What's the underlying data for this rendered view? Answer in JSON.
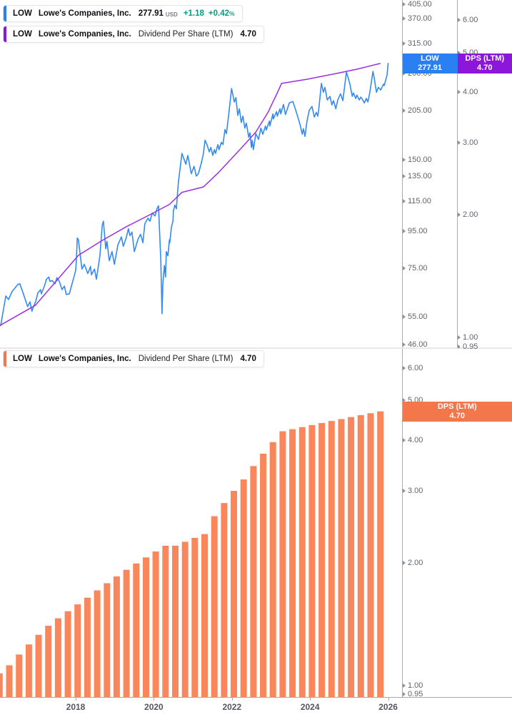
{
  "ui": {
    "legend_price": {
      "symbol": "LOW",
      "name": "Lowe's Companies, Inc.",
      "value": "277.91",
      "currency": "USD",
      "change": "+1.18",
      "change_pct": "+0.42",
      "pct_sign": "%"
    },
    "legend_dps_overlay": {
      "symbol": "LOW",
      "name": "Lowe's Companies, Inc.",
      "metric": "Dividend Per Share (LTM)",
      "value": "4.70"
    },
    "legend_dps_pane": {
      "symbol": "LOW",
      "name": "Lowe's Companies, Inc.",
      "metric": "Dividend Per Share (LTM)",
      "value": "4.70"
    },
    "price_badge": {
      "line1": "LOW",
      "line2": "277.91"
    },
    "dps_badge_top": {
      "line1": "DPS (LTM)",
      "line2": "4.70"
    },
    "dps_badge_bottom": {
      "line1": "DPS (LTM)",
      "line2": "4.70"
    },
    "colors": {
      "price_line": "#338af3",
      "price_badge": "#2a80f2",
      "dps_line": "#9a2fe3",
      "dps_badge": "#8c16db",
      "bars": "#f9875b",
      "bar_badge": "#f4764b",
      "change_positive": "#089981"
    }
  },
  "axes": {
    "price_ticks": [
      "405.00",
      "370.00",
      "315.00",
      "260.00",
      "205.00",
      "150.00",
      "135.00",
      "115.00",
      "95.00",
      "75.00",
      "55.00",
      "46.00"
    ],
    "dps_ticks_top": [
      "6.00",
      "5.00",
      "4.00",
      "3.00",
      "2.00",
      "1.00",
      "0.95"
    ],
    "dps_ticks_bottom": [
      "6.00",
      "5.00",
      "4.00",
      "3.00",
      "2.00",
      "1.00",
      "0.95"
    ],
    "time_ticks": [
      "2018",
      "2020",
      "2022",
      "2024",
      "2026"
    ]
  },
  "chart_data": [
    {
      "id": "price",
      "type": "line",
      "title": "LOW Lowe's Companies, Inc. price",
      "pane": "top",
      "y_axis": "price_usd_log",
      "y_range_labels": [
        46,
        405
      ],
      "x_range": [
        2016.06,
        2026.0
      ],
      "last_value": 277.91,
      "points": [
        [
          2016.08,
          52
        ],
        [
          2016.21,
          62.8
        ],
        [
          2016.28,
          61.4
        ],
        [
          2016.37,
          64.6
        ],
        [
          2016.52,
          67.6
        ],
        [
          2016.57,
          67.9
        ],
        [
          2016.66,
          63.7
        ],
        [
          2016.74,
          60
        ],
        [
          2016.77,
          58.7
        ],
        [
          2016.83,
          60.5
        ],
        [
          2016.88,
          57
        ],
        [
          2016.92,
          58.7
        ],
        [
          2016.98,
          60.8
        ],
        [
          2017.03,
          64
        ],
        [
          2017.1,
          65.4
        ],
        [
          2017.12,
          63.7
        ],
        [
          2017.2,
          66.9
        ],
        [
          2017.25,
          69.9
        ],
        [
          2017.31,
          70.9
        ],
        [
          2017.34,
          69
        ],
        [
          2017.4,
          69.3
        ],
        [
          2017.47,
          67.9
        ],
        [
          2017.52,
          70.6
        ],
        [
          2017.58,
          69
        ],
        [
          2017.65,
          65.4
        ],
        [
          2017.71,
          66.9
        ],
        [
          2017.76,
          63.4
        ],
        [
          2017.84,
          63.7
        ],
        [
          2017.89,
          66.9
        ],
        [
          2017.95,
          70.6
        ],
        [
          2018.0,
          74
        ],
        [
          2018.02,
          80
        ],
        [
          2018.04,
          91
        ],
        [
          2018.07,
          90
        ],
        [
          2018.13,
          79.4
        ],
        [
          2018.16,
          74.6
        ],
        [
          2018.22,
          76.9
        ],
        [
          2018.31,
          72.5
        ],
        [
          2018.38,
          75.9
        ],
        [
          2018.4,
          71.9
        ],
        [
          2018.48,
          74.6
        ],
        [
          2018.53,
          69.9
        ],
        [
          2018.62,
          81.2
        ],
        [
          2018.68,
          98.9
        ],
        [
          2018.71,
          101.3
        ],
        [
          2018.77,
          85
        ],
        [
          2018.8,
          89.1
        ],
        [
          2018.86,
          78.7
        ],
        [
          2018.93,
          83.4
        ],
        [
          2018.99,
          76.9
        ],
        [
          2019.08,
          87.1
        ],
        [
          2019.17,
          91.6
        ],
        [
          2019.22,
          86.3
        ],
        [
          2019.3,
          91.6
        ],
        [
          2019.35,
          96.6
        ],
        [
          2019.39,
          92.4
        ],
        [
          2019.44,
          94.5
        ],
        [
          2019.5,
          83.4
        ],
        [
          2019.59,
          90
        ],
        [
          2019.66,
          93.2
        ],
        [
          2019.72,
          88.3
        ],
        [
          2019.77,
          99.6
        ],
        [
          2019.85,
          103.3
        ],
        [
          2019.9,
          101.3
        ],
        [
          2019.96,
          106.7
        ],
        [
          2020.03,
          104.8
        ],
        [
          2020.08,
          109.7
        ],
        [
          2020.12,
          111.8
        ],
        [
          2020.14,
          98.7
        ],
        [
          2020.18,
          78.7
        ],
        [
          2020.21,
          56.1
        ],
        [
          2020.23,
          67.6
        ],
        [
          2020.27,
          76.3
        ],
        [
          2020.3,
          70.9
        ],
        [
          2020.32,
          83.4
        ],
        [
          2020.36,
          81.2
        ],
        [
          2020.4,
          90
        ],
        [
          2020.41,
          88.3
        ],
        [
          2020.45,
          97.5
        ],
        [
          2020.49,
          101.3
        ],
        [
          2020.5,
          108.1
        ],
        [
          2020.54,
          112.3
        ],
        [
          2020.58,
          109.7
        ],
        [
          2020.6,
          118.6
        ],
        [
          2020.63,
          130.5
        ],
        [
          2020.72,
          156.3
        ],
        [
          2020.82,
          145.8
        ],
        [
          2020.87,
          154.2
        ],
        [
          2020.96,
          137.2
        ],
        [
          2021.03,
          143.9
        ],
        [
          2021.09,
          135.2
        ],
        [
          2021.14,
          137.2
        ],
        [
          2021.22,
          147.3
        ],
        [
          2021.27,
          156.3
        ],
        [
          2021.31,
          170
        ],
        [
          2021.36,
          165.3
        ],
        [
          2021.42,
          157.8
        ],
        [
          2021.46,
          162.3
        ],
        [
          2021.51,
          154.2
        ],
        [
          2021.55,
          160
        ],
        [
          2021.58,
          156.3
        ],
        [
          2021.64,
          165.3
        ],
        [
          2021.67,
          160
        ],
        [
          2021.73,
          167.7
        ],
        [
          2021.77,
          165.3
        ],
        [
          2021.82,
          182
        ],
        [
          2021.86,
          177.4
        ],
        [
          2021.91,
          197.2
        ],
        [
          2021.99,
          236.6
        ],
        [
          2022.06,
          217
        ],
        [
          2022.1,
          223.2
        ],
        [
          2022.15,
          199.2
        ],
        [
          2022.19,
          207.8
        ],
        [
          2022.24,
          190.4
        ],
        [
          2022.28,
          198.3
        ],
        [
          2022.33,
          183.7
        ],
        [
          2022.37,
          189.6
        ],
        [
          2022.43,
          173.3
        ],
        [
          2022.46,
          178.3
        ],
        [
          2022.5,
          162.3
        ],
        [
          2022.52,
          170
        ],
        [
          2022.55,
          160
        ],
        [
          2022.61,
          177.4
        ],
        [
          2022.68,
          171
        ],
        [
          2022.74,
          183.7
        ],
        [
          2022.79,
          176.6
        ],
        [
          2022.86,
          186.2
        ],
        [
          2022.88,
          181.5
        ],
        [
          2022.96,
          192.2
        ],
        [
          2022.97,
          186.2
        ],
        [
          2023.05,
          201.2
        ],
        [
          2023.06,
          194.8
        ],
        [
          2023.14,
          204.1
        ],
        [
          2023.16,
          198.3
        ],
        [
          2023.23,
          207.8
        ],
        [
          2023.25,
          201.2
        ],
        [
          2023.32,
          213.7
        ],
        [
          2023.37,
          200.3
        ],
        [
          2023.47,
          215.7
        ],
        [
          2023.56,
          217.7
        ],
        [
          2023.65,
          203.1
        ],
        [
          2023.74,
          188.6
        ],
        [
          2023.8,
          176.6
        ],
        [
          2023.83,
          183
        ],
        [
          2023.87,
          174.2
        ],
        [
          2023.92,
          191.5
        ],
        [
          2023.98,
          205.9
        ],
        [
          2024.05,
          211
        ],
        [
          2024.11,
          197.2
        ],
        [
          2024.16,
          203.1
        ],
        [
          2024.2,
          198.3
        ],
        [
          2024.23,
          211
        ],
        [
          2024.29,
          244.4
        ],
        [
          2024.34,
          231
        ],
        [
          2024.38,
          238.4
        ],
        [
          2024.44,
          219.9
        ],
        [
          2024.51,
          225
        ],
        [
          2024.56,
          213
        ],
        [
          2024.6,
          218.9
        ],
        [
          2024.66,
          207.8
        ],
        [
          2024.71,
          219.9
        ],
        [
          2024.78,
          228.7
        ],
        [
          2024.84,
          218.9
        ],
        [
          2024.93,
          262.7
        ],
        [
          2024.98,
          252.4
        ],
        [
          2025.02,
          243.3
        ],
        [
          2025.08,
          225
        ],
        [
          2025.11,
          229.9
        ],
        [
          2025.17,
          222
        ],
        [
          2025.2,
          226.9
        ],
        [
          2025.26,
          219.9
        ],
        [
          2025.3,
          223.9
        ],
        [
          2025.35,
          219.9
        ],
        [
          2025.39,
          215.7
        ],
        [
          2025.44,
          222
        ],
        [
          2025.48,
          217
        ],
        [
          2025.53,
          231
        ],
        [
          2025.61,
          263.9
        ],
        [
          2025.64,
          254
        ],
        [
          2025.7,
          231
        ],
        [
          2025.75,
          238.4
        ],
        [
          2025.81,
          234.4
        ],
        [
          2025.88,
          243.3
        ],
        [
          2025.9,
          241.1
        ],
        [
          2025.97,
          257.8
        ],
        [
          2026.0,
          277.91
        ]
      ]
    },
    {
      "id": "dps_overlay",
      "type": "line",
      "title": "LOW Dividend Per Share (LTM) overlay",
      "pane": "top",
      "y_axis": "dps_log",
      "y_range_labels": [
        0.95,
        6.0
      ],
      "last_value": 4.7,
      "points": [
        [
          2016.06,
          1.07
        ],
        [
          2016.97,
          1.2
        ],
        [
          2018.07,
          1.59
        ],
        [
          2018.68,
          1.73
        ],
        [
          2019.3,
          1.87
        ],
        [
          2019.9,
          2.0
        ],
        [
          2020.4,
          2.12
        ],
        [
          2020.72,
          2.27
        ],
        [
          2021.27,
          2.34
        ],
        [
          2021.64,
          2.53
        ],
        [
          2022.19,
          2.88
        ],
        [
          2022.61,
          3.19
        ],
        [
          2022.92,
          3.56
        ],
        [
          2023.16,
          3.98
        ],
        [
          2023.27,
          4.2
        ],
        [
          2023.92,
          4.3
        ],
        [
          2024.66,
          4.44
        ],
        [
          2025.2,
          4.55
        ],
        [
          2025.79,
          4.7
        ]
      ]
    },
    {
      "id": "dps_bars",
      "type": "bar",
      "title": "LOW Dividend Per Share (LTM)",
      "pane": "bottom",
      "y_axis": "dps_log",
      "y_range_labels": [
        0.95,
        6.0
      ],
      "t_start": 2016.05,
      "t_step": 0.25,
      "last_value": 4.7,
      "categories": [
        "2015 Q4",
        "2016 Q1",
        "2016 Q2",
        "2016 Q3",
        "2016 Q4",
        "2017 Q1",
        "2017 Q2",
        "2017 Q3",
        "2017 Q4",
        "2018 Q1",
        "2018 Q2",
        "2018 Q3",
        "2018 Q4",
        "2019 Q1",
        "2019 Q2",
        "2019 Q3",
        "2019 Q4",
        "2020 Q1",
        "2020 Q2",
        "2020 Q3",
        "2020 Q4",
        "2021 Q1",
        "2021 Q2",
        "2021 Q3",
        "2021 Q4",
        "2022 Q1",
        "2022 Q2",
        "2022 Q3",
        "2022 Q4",
        "2023 Q1",
        "2023 Q2",
        "2023 Q3",
        "2023 Q4",
        "2024 Q1",
        "2024 Q2",
        "2024 Q3",
        "2024 Q4",
        "2025 Q1",
        "2025 Q2",
        "2025 Q3"
      ],
      "values": [
        1.07,
        1.12,
        1.19,
        1.26,
        1.33,
        1.4,
        1.46,
        1.52,
        1.58,
        1.64,
        1.71,
        1.78,
        1.85,
        1.92,
        1.99,
        2.06,
        2.13,
        2.2,
        2.2,
        2.25,
        2.3,
        2.35,
        2.6,
        2.8,
        3.0,
        3.2,
        3.45,
        3.7,
        3.95,
        4.2,
        4.25,
        4.3,
        4.35,
        4.4,
        4.45,
        4.5,
        4.55,
        4.6,
        4.65,
        4.7
      ]
    }
  ]
}
